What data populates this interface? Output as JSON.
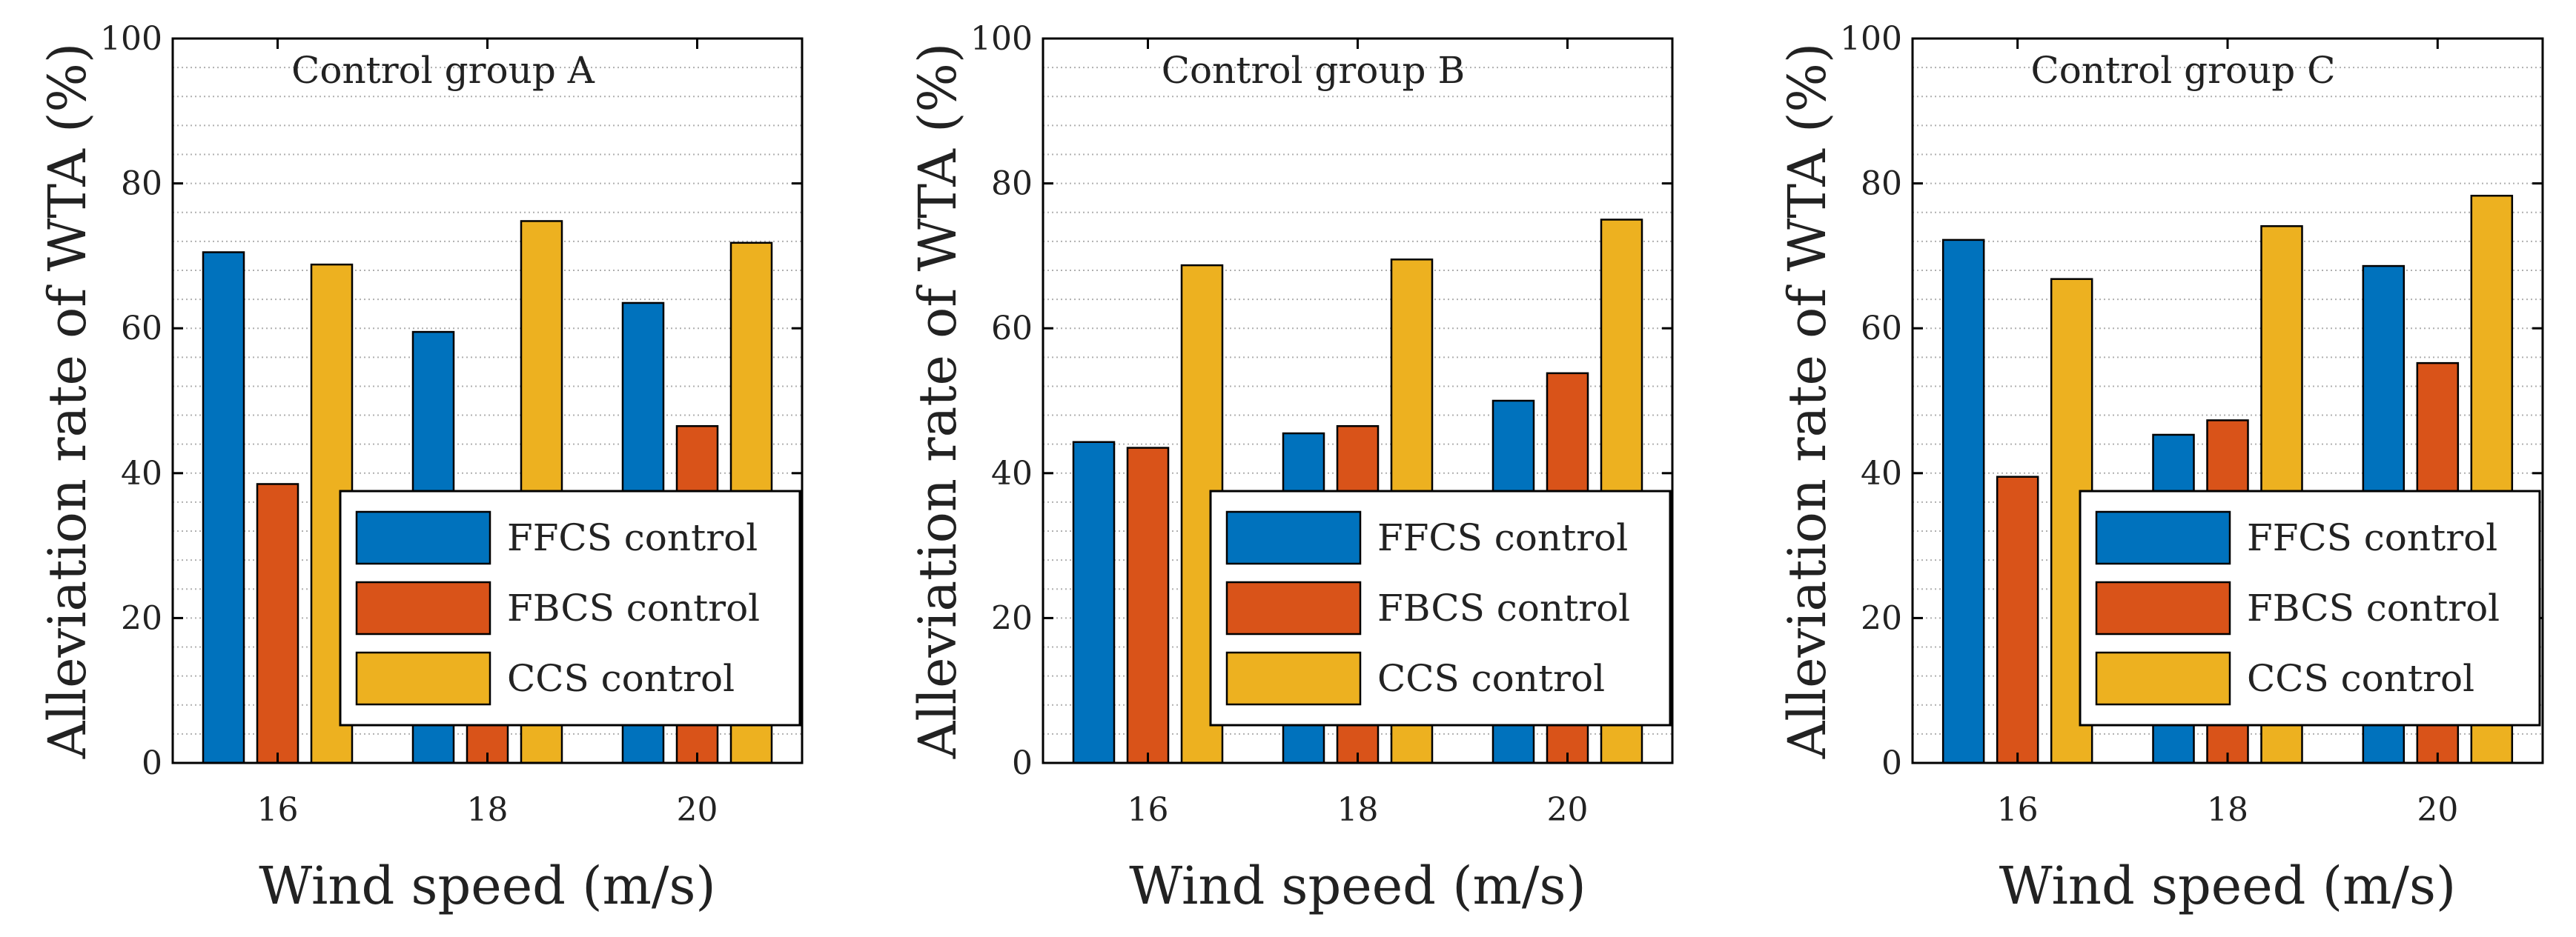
{
  "chart_data": [
    {
      "type": "bar",
      "title": "Control group A",
      "xlabel": "Wind speed (m/s)",
      "ylabel": "Alleviation rate of WTA (%)",
      "categories": [
        "16",
        "18",
        "20"
      ],
      "series": [
        {
          "name": "FFCS control",
          "values": [
            70.5,
            59.5,
            63.5
          ]
        },
        {
          "name": "FBCS control",
          "values": [
            38.5,
            18.0,
            46.5
          ]
        },
        {
          "name": "CCS control",
          "values": [
            68.8,
            74.8,
            71.8
          ]
        }
      ],
      "ylim": [
        0,
        100
      ],
      "yticks": [
        "0",
        "20",
        "40",
        "60",
        "80",
        "100"
      ],
      "grid": "horizontal dotted",
      "legend": "center-right"
    },
    {
      "type": "bar",
      "title": "Control group B",
      "xlabel": "Wind speed (m/s)",
      "ylabel": "Alleviation rate of WTA (%)",
      "categories": [
        "16",
        "18",
        "20"
      ],
      "series": [
        {
          "name": "FFCS control",
          "values": [
            44.3,
            45.5,
            50.0
          ]
        },
        {
          "name": "FBCS control",
          "values": [
            43.5,
            46.5,
            53.8
          ]
        },
        {
          "name": "CCS control",
          "values": [
            68.7,
            69.5,
            75.0
          ]
        }
      ],
      "ylim": [
        0,
        100
      ],
      "yticks": [
        "0",
        "20",
        "40",
        "60",
        "80",
        "100"
      ],
      "grid": "horizontal dotted",
      "legend": "center-right"
    },
    {
      "type": "bar",
      "title": "Control group C",
      "xlabel": "Wind speed (m/s)",
      "ylabel": "Alleviation rate of WTA (%)",
      "categories": [
        "16",
        "18",
        "20"
      ],
      "series": [
        {
          "name": "FFCS control",
          "values": [
            72.2,
            45.3,
            68.6
          ]
        },
        {
          "name": "FBCS control",
          "values": [
            39.5,
            47.3,
            55.2
          ]
        },
        {
          "name": "CCS control",
          "values": [
            66.8,
            74.1,
            78.3
          ]
        }
      ],
      "ylim": [
        0,
        100
      ],
      "yticks": [
        "0",
        "20",
        "40",
        "60",
        "80",
        "100"
      ],
      "grid": "horizontal dotted",
      "legend": "center-right"
    }
  ],
  "colors": {
    "FFCS control": "#0072BD",
    "FBCS control": "#D95319",
    "CCS control": "#EDB120",
    "grid": "#b0b0b0",
    "axis": "#000000"
  }
}
